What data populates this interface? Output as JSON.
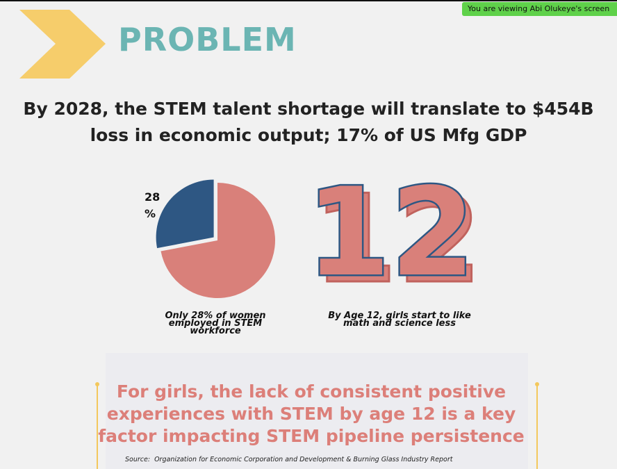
{
  "screen_banner": "You are viewing Abi Olukeye's screen",
  "slide": {
    "title": "PROBLEM",
    "headline": [
      "By 2028, the STEM talent shortage will translate to $454B",
      "loss in economic output; 17% of US Mfg GDP"
    ],
    "stat_number": "12",
    "stat_caption": [
      "By Age 12, girls start to like",
      "math and science less"
    ],
    "callout": [
      "For girls, the lack of consistent positive",
      "experiences with STEM by age 12 is a key",
      "factor impacting STEM pipeline persistence"
    ],
    "source": "Source:  Organization for Economic Corporation and Development & Burning Glass Industry Report"
  },
  "chart_data": {
    "type": "pie",
    "values": [
      28,
      72
    ],
    "value_labels": [
      "28 %",
      null
    ],
    "colors": [
      "#2e5783",
      "#d9807a"
    ],
    "caption": [
      "Only 28% of women",
      "employed in STEM",
      "workforce"
    ]
  }
}
